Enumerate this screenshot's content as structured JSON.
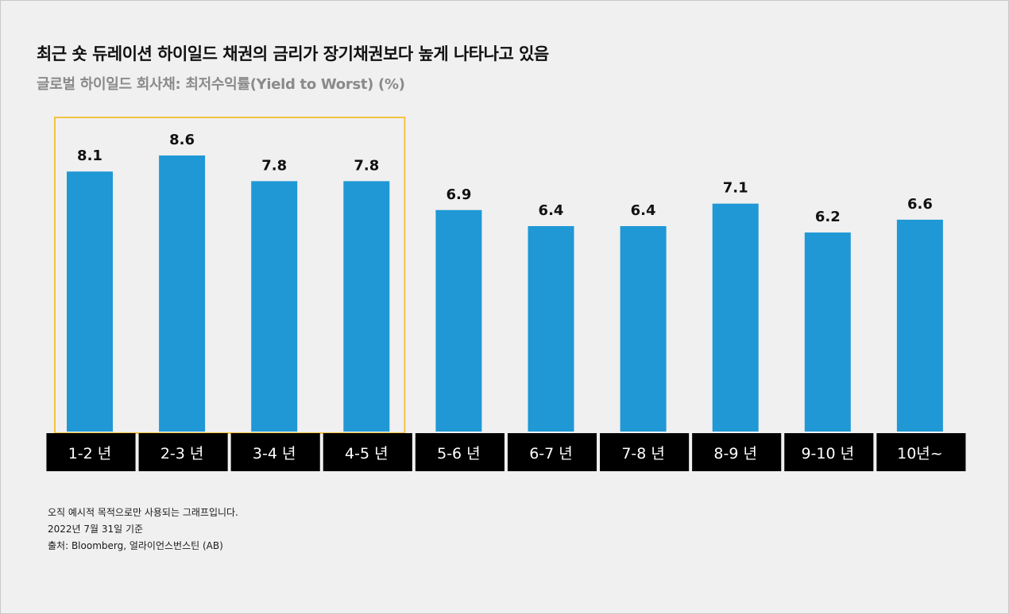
{
  "header": {
    "title": "최근 숏 듀레이션 하이일드 채권의 금리가 장기채권보다 높게 나타나고 있음",
    "subtitle": "글로벌 하이일드 회사채: 최저수익률(Yield to Worst) (%)"
  },
  "footnotes": {
    "note": "오직 예시적 목적으로만 사용되는 그래프입니다.",
    "date": "2022년 7월 31일 기준",
    "source": "출처: Bloomberg, 얼라이언스번스틴 (AB)"
  },
  "colors": {
    "bar": "#1f98d5",
    "highlight": "#f5c242",
    "category_bg": "#000000",
    "category_text": "#ffffff",
    "value_text": "#111111"
  },
  "chart_data": {
    "type": "bar",
    "title": "글로벌 하이일드 회사채: 최저수익률(Yield to Worst) (%)",
    "categories": [
      "1-2 년",
      "2-3 년",
      "3-4 년",
      "4-5 년",
      "5-6 년",
      "6-7 년",
      "7-8 년",
      "8-9 년",
      "9-10 년",
      "10년~"
    ],
    "values": [
      8.1,
      8.6,
      7.8,
      7.8,
      6.9,
      6.4,
      6.4,
      7.1,
      6.2,
      6.6
    ],
    "data_labels": [
      "8.1",
      "8.6",
      "7.8",
      "7.8",
      "6.9",
      "6.4",
      "6.4",
      "7.1",
      "6.2",
      "6.6"
    ],
    "highlighted_categories": [
      "1-2 년",
      "2-3 년",
      "3-4 년",
      "4-5 년"
    ],
    "grid": false,
    "legend": "none"
  }
}
